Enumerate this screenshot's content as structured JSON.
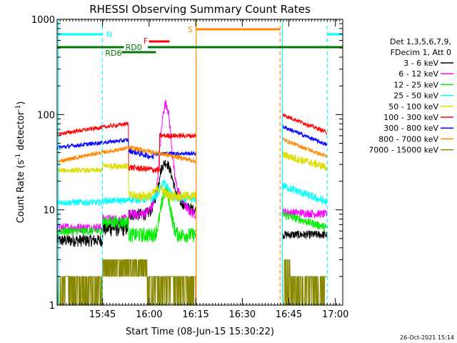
{
  "chart_data": {
    "type": "line",
    "title": "RHESSI Observing Summary Count Rates",
    "xlabel": "Start Time (08-Jun-15 15:30:22)",
    "ylabel_main": "Count Rate (s",
    "ylabel_sup1": "-1",
    "ylabel_mid": " detector",
    "ylabel_sup2": "-1",
    "ylabel_end": ")",
    "y_scale": "log",
    "ylim": [
      1,
      1000
    ],
    "xlim_minutes": [
      0,
      92
    ],
    "x_ticks": [
      {
        "label": "15:45",
        "minute": 14.63
      },
      {
        "label": "16:00",
        "minute": 29.63
      },
      {
        "label": "16:15",
        "minute": 44.63
      },
      {
        "label": "16:30",
        "minute": 59.63
      },
      {
        "label": "16:45",
        "minute": 74.63
      },
      {
        "label": "17:00",
        "minute": 89.63
      }
    ],
    "y_ticks": [
      {
        "label": "1",
        "value": 1
      },
      {
        "label": "10",
        "value": 10
      },
      {
        "label": "100",
        "value": 100
      },
      {
        "label": "1000",
        "value": 1000
      }
    ],
    "legend_header": [
      "Det 1,3,5,6,7,9,",
      "FDecim 1, Att 0"
    ],
    "series": [
      {
        "name": "3 - 6 keV",
        "color": "#000000"
      },
      {
        "name": "6 - 12 keV",
        "color": "#ff00ff"
      },
      {
        "name": "12 - 25 keV",
        "color": "#00ee00"
      },
      {
        "name": "25 - 50 keV",
        "color": "#00ffff"
      },
      {
        "name": "50 - 100 keV",
        "color": "#dddd00"
      },
      {
        "name": "100 - 300 keV",
        "color": "#ff0000"
      },
      {
        "name": "300 - 800 keV",
        "color": "#0000ff"
      },
      {
        "name": "800 - 7000 keV",
        "color": "#ff8800"
      },
      {
        "name": "7000 - 15000 keV",
        "color": "#888800"
      }
    ],
    "flags": [
      {
        "label": "N",
        "color": "#00ffff"
      },
      {
        "label": "F",
        "color": "#ff0000"
      },
      {
        "label": "RD0",
        "color": "#007700"
      },
      {
        "label": "RD6",
        "color": "#007700"
      },
      {
        "label": "S",
        "color": "#ff8800"
      }
    ],
    "timestamp": "26-Oct-2021 15:14"
  }
}
